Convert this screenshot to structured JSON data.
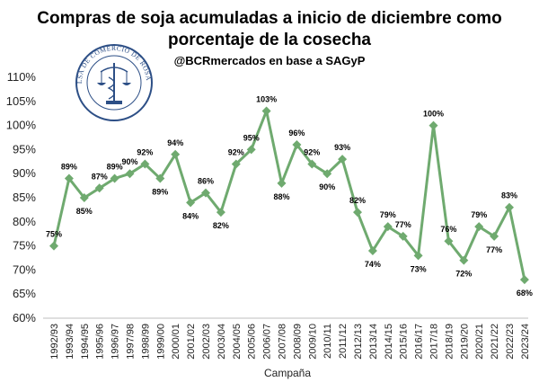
{
  "chart_data": {
    "type": "line",
    "title_line1": "Compras de soja acumuladas a inicio de diciembre como",
    "title_line2": "porcentaje de la cosecha",
    "subtitle": "@BCRmercados en base a SAGyP",
    "seal_text": "BOLSA DE COMERCIO DE ROSARIO",
    "xlabel": "Campaña",
    "ylabel": "",
    "ylim": [
      60,
      110
    ],
    "yticks": [
      60,
      65,
      70,
      75,
      80,
      85,
      90,
      95,
      100,
      105,
      110
    ],
    "ytick_labels": [
      "60%",
      "65%",
      "70%",
      "75%",
      "80%",
      "85%",
      "90%",
      "95%",
      "100%",
      "105%",
      "110%"
    ],
    "grid": false,
    "legend": "none",
    "color": "#6faa6f",
    "categories": [
      "1992/93",
      "1993/94",
      "1994/95",
      "1995/96",
      "1996/97",
      "1997/98",
      "1998/99",
      "1999/00",
      "2000/01",
      "2001/02",
      "2002/03",
      "2003/04",
      "2004/05",
      "2005/06",
      "2006/07",
      "2007/08",
      "2008/09",
      "2009/10",
      "2010/11",
      "2011/12",
      "2012/13",
      "2013/14",
      "2014/15",
      "2015/16",
      "2016/17",
      "2017/18",
      "2018/19",
      "2019/20",
      "2020/21",
      "2021/22",
      "2022/23",
      "2023/24"
    ],
    "values": [
      75,
      89,
      85,
      87,
      89,
      90,
      92,
      89,
      94,
      84,
      86,
      82,
      92,
      95,
      103,
      88,
      96,
      92,
      90,
      93,
      82,
      74,
      79,
      77,
      73,
      100,
      76,
      72,
      79,
      77,
      83,
      68
    ],
    "value_labels": [
      "75%",
      "89%",
      "85%",
      "87%",
      "89%",
      "90%",
      "92%",
      "89%",
      "94%",
      "84%",
      "86%",
      "82%",
      "92%",
      "95%",
      "103%",
      "88%",
      "96%",
      "92%",
      "90%",
      "93%",
      "82%",
      "74%",
      "79%",
      "77%",
      "73%",
      "100%",
      "76%",
      "72%",
      "79%",
      "77%",
      "83%",
      "68%"
    ]
  }
}
